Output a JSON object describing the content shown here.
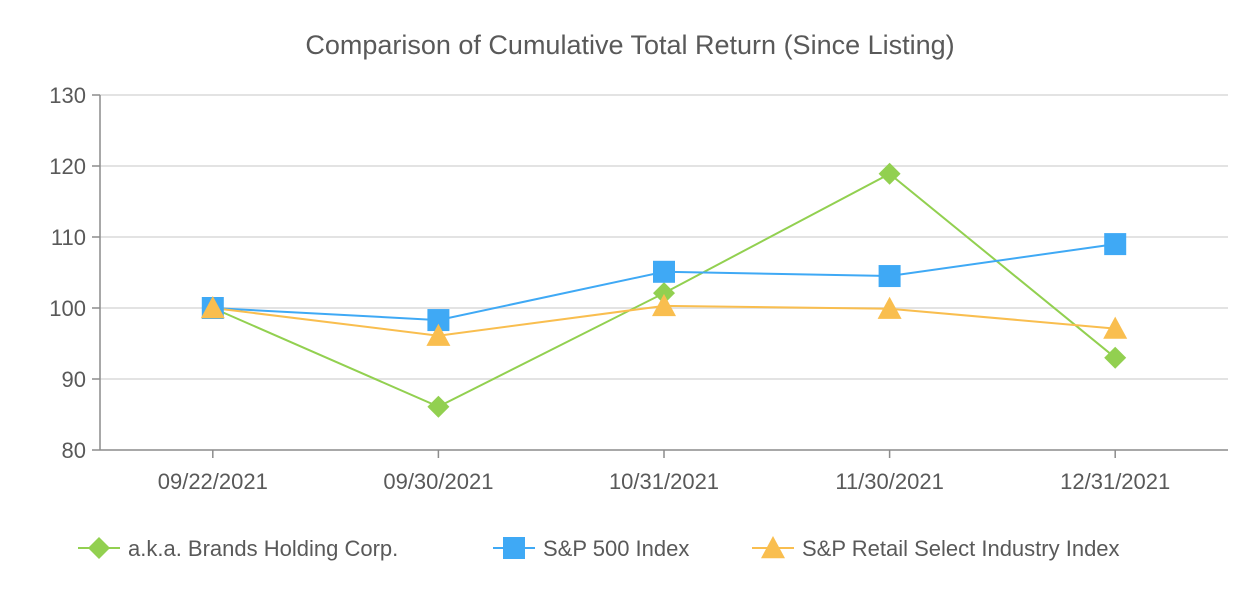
{
  "chart_data": {
    "type": "line",
    "title": "Comparison of Cumulative Total Return (Since Listing)",
    "xlabel": "",
    "ylabel": "",
    "categories": [
      "09/22/2021",
      "09/30/2021",
      "10/31/2021",
      "11/30/2021",
      "12/31/2021"
    ],
    "ylim": [
      80,
      130
    ],
    "yticks": [
      80,
      90,
      100,
      110,
      120,
      130
    ],
    "grid": true,
    "legend_position": "bottom",
    "series": [
      {
        "name": "a.k.a. Brands Holding Corp.",
        "marker": "diamond",
        "color": "#92D050",
        "values": [
          100,
          86.1,
          102.1,
          118.9,
          93.0
        ]
      },
      {
        "name": "S&P 500 Index",
        "marker": "square",
        "color": "#3FA9F5",
        "values": [
          100,
          98.3,
          105.1,
          104.5,
          109.0
        ]
      },
      {
        "name": "S&P Retail Select Industry Index",
        "marker": "triangle",
        "color": "#F9BE4F",
        "values": [
          100,
          96.1,
          100.3,
          99.9,
          97.1
        ]
      }
    ]
  }
}
